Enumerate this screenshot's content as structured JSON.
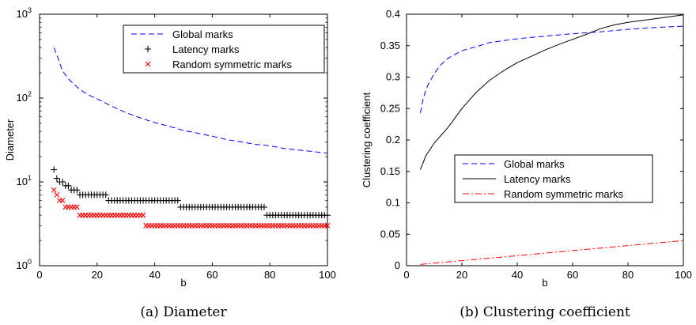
{
  "chart_data": [
    {
      "type": "scatter",
      "caption": "(a) Diameter",
      "xlabel": "b",
      "ylabel": "Diameter",
      "xlim": [
        0,
        100
      ],
      "ylim": [
        1,
        1000
      ],
      "yscale": "log",
      "x_ticks": [
        "0",
        "20",
        "40",
        "60",
        "80",
        "100"
      ],
      "y_ticks": [
        {
          "base": "10",
          "exp": "0"
        },
        {
          "base": "10",
          "exp": "1"
        },
        {
          "base": "10",
          "exp": "2"
        },
        {
          "base": "10",
          "exp": "3"
        }
      ],
      "legend_position": "top-right",
      "grid": false,
      "series": [
        {
          "name": "Global marks",
          "style": "dashed-line",
          "color": "#0000ff",
          "x": [
            5,
            6,
            7,
            8,
            10,
            12,
            15,
            18,
            20,
            25,
            30,
            35,
            40,
            45,
            50,
            55,
            60,
            65,
            70,
            75,
            80,
            85,
            90,
            95,
            100
          ],
          "y": [
            400,
            330,
            260,
            210,
            170,
            145,
            120,
            105,
            98,
            80,
            67,
            58,
            51,
            46,
            41,
            38,
            35,
            32,
            30,
            28,
            27,
            25,
            24,
            23,
            22
          ]
        },
        {
          "name": "Latency marks",
          "style": "plus-marker",
          "color": "#000000",
          "x": [
            5,
            6,
            7,
            8,
            9,
            10,
            11,
            12,
            13,
            14,
            15,
            16,
            17,
            18,
            19,
            20,
            21,
            22,
            23,
            24,
            25,
            26,
            27,
            28,
            29,
            30,
            31,
            32,
            33,
            34,
            35,
            36,
            37,
            38,
            39,
            40,
            41,
            42,
            43,
            44,
            45,
            46,
            47,
            48,
            49,
            50,
            51,
            52,
            53,
            54,
            55,
            56,
            57,
            58,
            59,
            60,
            61,
            62,
            63,
            64,
            65,
            66,
            67,
            68,
            69,
            70,
            71,
            72,
            73,
            74,
            75,
            76,
            77,
            78,
            79,
            80,
            81,
            82,
            83,
            84,
            85,
            86,
            87,
            88,
            89,
            90,
            91,
            92,
            93,
            94,
            95,
            96,
            97,
            98,
            99,
            100
          ],
          "y": [
            14,
            11,
            10,
            10,
            9,
            9,
            8,
            8,
            8,
            7,
            7,
            7,
            7,
            7,
            7,
            7,
            7,
            7,
            7,
            6,
            6,
            6,
            6,
            6,
            6,
            6,
            6,
            6,
            6,
            6,
            6,
            6,
            6,
            6,
            6,
            6,
            6,
            6,
            6,
            6,
            6,
            6,
            6,
            6,
            5,
            5,
            5,
            5,
            5,
            5,
            5,
            5,
            5,
            5,
            5,
            5,
            5,
            5,
            5,
            5,
            5,
            5,
            5,
            5,
            5,
            5,
            5,
            5,
            5,
            5,
            5,
            5,
            5,
            5,
            4,
            4,
            4,
            4,
            4,
            4,
            4,
            4,
            4,
            4,
            4,
            4,
            4,
            4,
            4,
            4,
            4,
            4,
            4,
            4,
            4,
            4
          ]
        },
        {
          "name": "Random symmetric marks",
          "style": "x-marker",
          "color": "#ff0000",
          "x": [
            5,
            6,
            7,
            8,
            9,
            10,
            11,
            12,
            13,
            14,
            15,
            16,
            17,
            18,
            19,
            20,
            21,
            22,
            23,
            24,
            25,
            26,
            27,
            28,
            29,
            30,
            31,
            32,
            33,
            34,
            35,
            36,
            37,
            38,
            39,
            40,
            41,
            42,
            43,
            44,
            45,
            46,
            47,
            48,
            49,
            50,
            51,
            52,
            53,
            54,
            55,
            56,
            57,
            58,
            59,
            60,
            61,
            62,
            63,
            64,
            65,
            66,
            67,
            68,
            69,
            70,
            71,
            72,
            73,
            74,
            75,
            76,
            77,
            78,
            79,
            80,
            81,
            82,
            83,
            84,
            85,
            86,
            87,
            88,
            89,
            90,
            91,
            92,
            93,
            94,
            95,
            96,
            97,
            98,
            99,
            100
          ],
          "y": [
            8,
            7,
            6,
            6,
            5,
            5,
            5,
            5,
            5,
            4,
            4,
            4,
            4,
            4,
            4,
            4,
            4,
            4,
            4,
            4,
            4,
            4,
            4,
            4,
            4,
            4,
            4,
            4,
            4,
            4,
            4,
            4,
            3,
            3,
            3,
            3,
            3,
            3,
            3,
            3,
            3,
            3,
            3,
            3,
            3,
            3,
            3,
            3,
            3,
            3,
            3,
            3,
            3,
            3,
            3,
            3,
            3,
            3,
            3,
            3,
            3,
            3,
            3,
            3,
            3,
            3,
            3,
            3,
            3,
            3,
            3,
            3,
            3,
            3,
            3,
            3,
            3,
            3,
            3,
            3,
            3,
            3,
            3,
            3,
            3,
            3,
            3,
            3,
            3,
            3,
            3,
            3,
            3,
            3,
            3,
            3
          ]
        }
      ]
    },
    {
      "type": "line",
      "caption": "(b) Clustering coefficient",
      "xlabel": "b",
      "ylabel": "Clustering coefficient",
      "xlim": [
        0,
        100
      ],
      "ylim": [
        0,
        0.4
      ],
      "x_ticks": [
        "0",
        "20",
        "40",
        "60",
        "80",
        "100"
      ],
      "y_ticks": [
        "0",
        "0.05",
        "0.1",
        "0.15",
        "0.2",
        "0.25",
        "0.3",
        "0.35",
        "0.4"
      ],
      "legend_position": "center-right",
      "grid": false,
      "series": [
        {
          "name": "Global marks",
          "style": "dashed",
          "color": "#0000ff",
          "x": [
            5,
            6,
            7,
            8,
            10,
            12,
            15,
            20,
            25,
            30,
            40,
            50,
            60,
            70,
            80,
            90,
            100
          ],
          "y": [
            0.243,
            0.265,
            0.28,
            0.29,
            0.305,
            0.318,
            0.33,
            0.342,
            0.348,
            0.355,
            0.361,
            0.365,
            0.369,
            0.372,
            0.376,
            0.379,
            0.381
          ]
        },
        {
          "name": "Latency marks",
          "style": "solid",
          "color": "#000000",
          "x": [
            5,
            7,
            10,
            12,
            15,
            20,
            25,
            30,
            35,
            40,
            45,
            50,
            55,
            60,
            65,
            70,
            75,
            80,
            85,
            90,
            95,
            100
          ],
          "y": [
            0.153,
            0.175,
            0.195,
            0.205,
            0.22,
            0.25,
            0.275,
            0.295,
            0.31,
            0.323,
            0.333,
            0.343,
            0.352,
            0.36,
            0.368,
            0.377,
            0.383,
            0.387,
            0.39,
            0.393,
            0.396,
            0.399
          ]
        },
        {
          "name": "Random symmetric marks",
          "style": "dash-dot",
          "color": "#ff0000",
          "x": [
            5,
            10,
            20,
            30,
            40,
            50,
            60,
            70,
            80,
            90,
            100
          ],
          "y": [
            0.002,
            0.004,
            0.008,
            0.012,
            0.016,
            0.02,
            0.024,
            0.028,
            0.032,
            0.036,
            0.04
          ]
        }
      ]
    }
  ]
}
